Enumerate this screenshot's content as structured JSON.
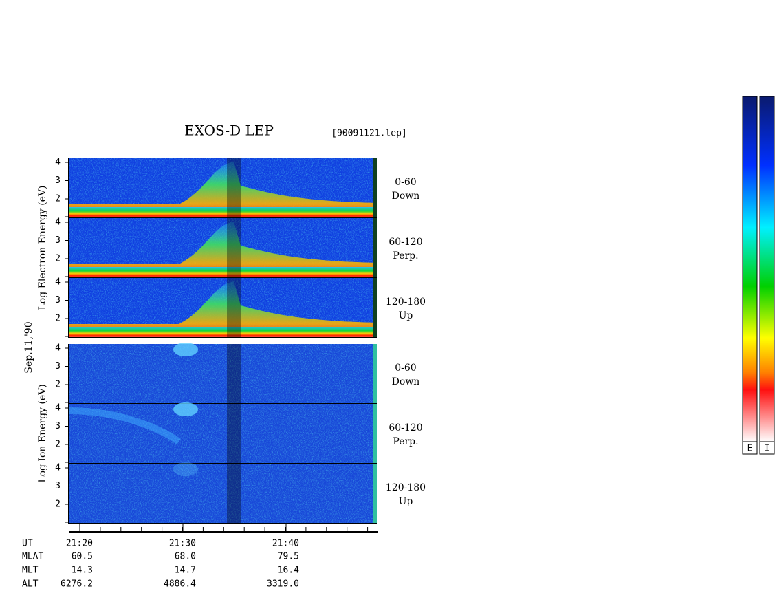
{
  "title": "EXOS-D LEP",
  "file": "[90091121.lep]",
  "date_label": "Sep.11,'90",
  "groups": [
    {
      "ylabel": "Log Electron Energy (eV)",
      "panels": [
        {
          "range": "0-60",
          "dir": "Down"
        },
        {
          "range": "60-120",
          "dir": "Perp."
        },
        {
          "range": "120-180",
          "dir": "Up"
        }
      ]
    },
    {
      "ylabel": "Log Ion Energy (eV)",
      "panels": [
        {
          "range": "0-60",
          "dir": "Down"
        },
        {
          "range": "60-120",
          "dir": "Perp."
        },
        {
          "range": "120-180",
          "dir": "Up"
        }
      ]
    }
  ],
  "yticks": [
    4,
    3,
    2
  ],
  "ut_label": "UT",
  "xticks": [
    "21:20",
    "21:30",
    "21:40"
  ],
  "rows": [
    {
      "label": "MLAT",
      "values": [
        "60.5",
        "68.0",
        "79.5"
      ]
    },
    {
      "label": "MLT",
      "values": [
        "14.3",
        "14.7",
        "16.4"
      ]
    },
    {
      "label": "ALT",
      "values": [
        "6276.2",
        "4886.4",
        "3319.0"
      ]
    }
  ],
  "colorbars": [
    "E",
    "I"
  ]
}
